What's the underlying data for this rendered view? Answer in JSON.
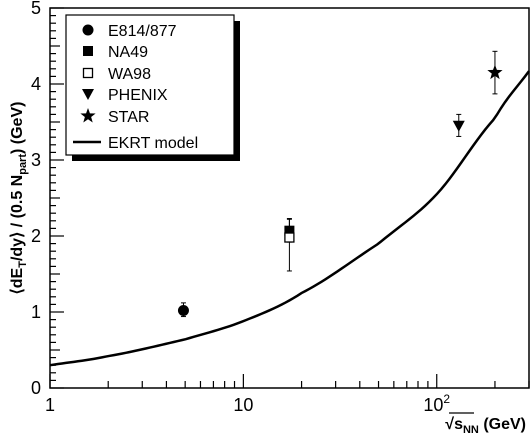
{
  "chart_data": {
    "type": "scatter",
    "x_scale": "log",
    "xlim": [
      1,
      300
    ],
    "ylim": [
      0,
      5
    ],
    "x_ticks": [
      {
        "value": 1,
        "label": "1"
      },
      {
        "value": 10,
        "label": "10"
      },
      {
        "value": 100,
        "label": "10",
        "sup": "2"
      }
    ],
    "y_ticks": [
      0,
      1,
      2,
      3,
      4,
      5
    ],
    "xlabel": {
      "prefix": "√",
      "main": "s",
      "sub": "NN",
      "suffix": " (GeV)"
    },
    "ylabel": {
      "p1": "⟨dE",
      "p1_sub": "T",
      "p2": "/dy⟩ / (0.5 N",
      "p2_sub": "part",
      "p3": ") (GeV)"
    },
    "legend_position": "top-left",
    "series": [
      {
        "name": "E814/877",
        "marker": "circle",
        "points": [
          {
            "x": 4.9,
            "y": 1.02,
            "yerr_lo": 0.08,
            "yerr_hi": 0.1
          }
        ]
      },
      {
        "name": "NA49",
        "marker": "square-filled",
        "points": [
          {
            "x": 17.3,
            "y": 2.07,
            "yerr_lo": 0.15,
            "yerr_hi": 0.15
          }
        ]
      },
      {
        "name": "WA98",
        "marker": "square-open",
        "points": [
          {
            "x": 17.3,
            "y": 1.98,
            "yerr_lo": 0.44,
            "yerr_hi": 0.25
          }
        ]
      },
      {
        "name": "PHENIX",
        "marker": "triangle-down",
        "points": [
          {
            "x": 130,
            "y": 3.45,
            "yerr_lo": 0.14,
            "yerr_hi": 0.15
          }
        ]
      },
      {
        "name": "STAR",
        "marker": "star",
        "points": [
          {
            "x": 200,
            "y": 4.15,
            "yerr_lo": 0.28,
            "yerr_hi": 0.28
          }
        ]
      }
    ],
    "model": {
      "name": "EKRT model",
      "points": [
        {
          "x": 1,
          "y": 0.3
        },
        {
          "x": 2,
          "y": 0.42
        },
        {
          "x": 5,
          "y": 0.64
        },
        {
          "x": 10,
          "y": 0.88
        },
        {
          "x": 20,
          "y": 1.25
        },
        {
          "x": 50,
          "y": 1.9
        },
        {
          "x": 100,
          "y": 2.55
        },
        {
          "x": 200,
          "y": 3.55
        },
        {
          "x": 300,
          "y": 4.17
        }
      ]
    }
  }
}
